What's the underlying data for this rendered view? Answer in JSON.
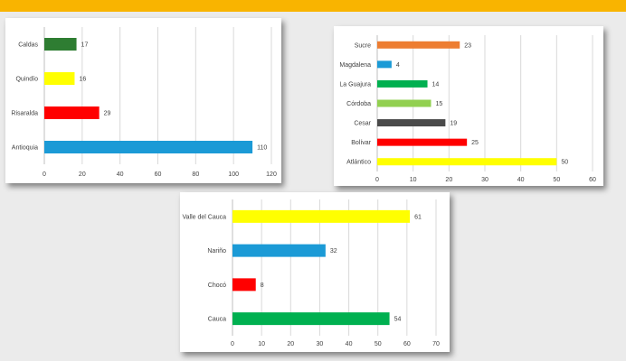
{
  "chart_data": [
    {
      "type": "bar",
      "orientation": "horizontal",
      "categories": [
        "Caldas",
        "Quindío",
        "Risaralda",
        "Antioquia"
      ],
      "values": [
        17,
        16,
        29,
        110
      ],
      "colors": [
        "#2e7d32",
        "#ffff00",
        "#ff0000",
        "#1b9ad6"
      ],
      "xlim": [
        0,
        120
      ],
      "xticks": [
        0,
        20,
        40,
        60,
        80,
        100,
        120
      ],
      "grid": true
    },
    {
      "type": "bar",
      "orientation": "horizontal",
      "categories": [
        "Sucre",
        "Magdalena",
        "La Guajura",
        "Córdoba",
        "Cesar",
        "Bolívar",
        "Atlántico"
      ],
      "values": [
        23,
        4,
        14,
        15,
        19,
        25,
        50
      ],
      "colors": [
        "#ed7d31",
        "#1b9ad6",
        "#00b050",
        "#92d050",
        "#4a4a4a",
        "#ff0000",
        "#ffff00"
      ],
      "xlim": [
        0,
        60
      ],
      "xticks": [
        0,
        10,
        20,
        30,
        40,
        50,
        60
      ],
      "grid": true
    },
    {
      "type": "bar",
      "orientation": "horizontal",
      "categories": [
        "Valle del Cauca",
        "Nariño",
        "Chocó",
        "Cauca"
      ],
      "values": [
        61,
        32,
        8,
        54
      ],
      "colors": [
        "#ffff00",
        "#1b9ad6",
        "#ff0000",
        "#00b050"
      ],
      "xlim": [
        0,
        70
      ],
      "xticks": [
        0,
        10,
        20,
        30,
        40,
        50,
        60,
        70
      ],
      "grid": true
    }
  ]
}
